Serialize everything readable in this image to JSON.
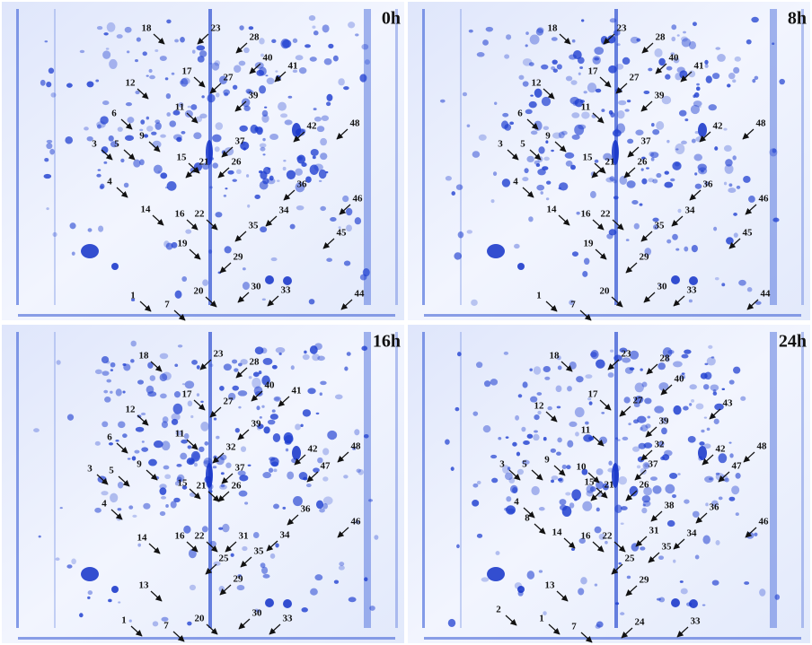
{
  "panels": [
    {
      "time": "0h",
      "labels": [
        "18",
        "23",
        "28",
        "17",
        "27",
        "40",
        "41",
        "12",
        "11",
        "39",
        "6",
        "42",
        "48",
        "9",
        "3",
        "5",
        "37",
        "15",
        "21",
        "26",
        "4",
        "36",
        "46",
        "14",
        "16",
        "22",
        "34",
        "35",
        "45",
        "19",
        "29",
        "20",
        "30",
        "33",
        "1",
        "7",
        "44"
      ]
    },
    {
      "time": "8h",
      "labels": [
        "18",
        "23",
        "28",
        "17",
        "27",
        "40",
        "41",
        "12",
        "11",
        "39",
        "6",
        "42",
        "48",
        "9",
        "3",
        "5",
        "37",
        "15",
        "21",
        "26",
        "4",
        "36",
        "46",
        "14",
        "16",
        "22",
        "34",
        "35",
        "45",
        "19",
        "29",
        "20",
        "30",
        "33",
        "1",
        "7",
        "44"
      ]
    },
    {
      "time": "16h",
      "labels": [
        "18",
        "23",
        "28",
        "17",
        "27",
        "40",
        "41",
        "12",
        "11",
        "39",
        "6",
        "32",
        "42",
        "48",
        "9",
        "3",
        "5",
        "37",
        "47",
        "15",
        "21",
        "26",
        "4",
        "36",
        "46",
        "14",
        "16",
        "22",
        "31",
        "34",
        "25",
        "35",
        "29",
        "13",
        "20",
        "30",
        "33",
        "1",
        "7"
      ]
    },
    {
      "time": "24h",
      "labels": [
        "18",
        "23",
        "28",
        "17",
        "27",
        "40",
        "43",
        "12",
        "11",
        "39",
        "32",
        "42",
        "48",
        "3",
        "5",
        "9",
        "10",
        "15",
        "37",
        "47",
        "4",
        "21",
        "26",
        "38",
        "36",
        "46",
        "8",
        "14",
        "16",
        "22",
        "31",
        "34",
        "25",
        "35",
        "29",
        "13",
        "33",
        "2",
        "1",
        "7",
        "24"
      ]
    }
  ]
}
